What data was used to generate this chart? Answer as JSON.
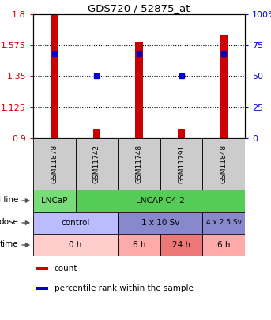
{
  "title": "GDS720 / 52875_at",
  "samples": [
    "GSM11878",
    "GSM11742",
    "GSM11748",
    "GSM11791",
    "GSM11848"
  ],
  "bar_bottoms": [
    0.9,
    0.9,
    0.9,
    0.9,
    0.9
  ],
  "bar_tops": [
    1.8,
    0.97,
    1.6,
    0.97,
    1.65
  ],
  "percentile_ranks": [
    68,
    50,
    68,
    50,
    68
  ],
  "ylim_left": [
    0.9,
    1.8
  ],
  "ylim_right": [
    0,
    100
  ],
  "yticks_left": [
    0.9,
    1.125,
    1.35,
    1.575,
    1.8
  ],
  "yticks_right": [
    0,
    25,
    50,
    75,
    100
  ],
  "bar_color": "#cc0000",
  "dot_color": "#0000cc",
  "cell_line_data": [
    {
      "label": "LNCaP",
      "start": 0,
      "end": 1,
      "color": "#77dd77"
    },
    {
      "label": "LNCAP C4-2",
      "start": 1,
      "end": 5,
      "color": "#55cc55"
    }
  ],
  "dose_data": [
    {
      "label": "control",
      "start": 0,
      "end": 2,
      "color": "#bbbbff"
    },
    {
      "label": "1 x 10 Sv",
      "start": 2,
      "end": 4,
      "color": "#8888cc"
    },
    {
      "label": "4 x 2.5 Sv",
      "start": 4,
      "end": 5,
      "color": "#8888cc"
    }
  ],
  "time_data": [
    {
      "label": "0 h",
      "start": 0,
      "end": 2,
      "color": "#ffcccc"
    },
    {
      "label": "6 h",
      "start": 2,
      "end": 3,
      "color": "#ffaaaa"
    },
    {
      "label": "24 h",
      "start": 3,
      "end": 4,
      "color": "#ee7777"
    },
    {
      "label": "6 h",
      "start": 4,
      "end": 5,
      "color": "#ffaaaa"
    }
  ],
  "legend_items": [
    {
      "color": "#cc0000",
      "label": "count"
    },
    {
      "color": "#0000cc",
      "label": "percentile rank within the sample"
    }
  ],
  "bg_color": "#ffffff",
  "sample_box_color": "#cccccc"
}
